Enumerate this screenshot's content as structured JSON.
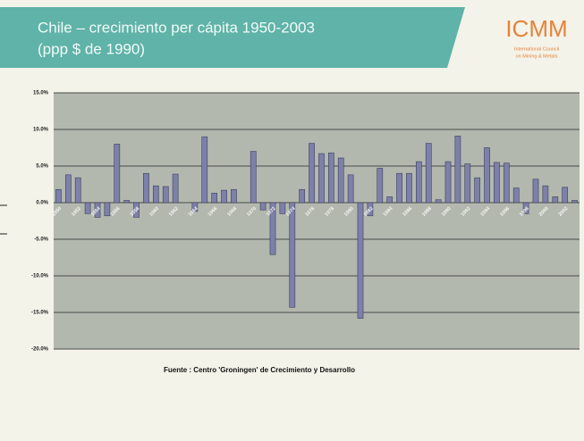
{
  "header": {
    "title": "Chile – crecimiento per cápita  1950-2003",
    "subtitle": "(ppp $ de 1990)",
    "logo": "ICMM",
    "logo_caption_1": "International Council",
    "logo_caption_2": "on Mining & Metals"
  },
  "chart_data": {
    "type": "bar",
    "color": "#7d80a8",
    "grid": true,
    "categories": [
      "1950",
      null,
      "1952",
      null,
      "1954",
      null,
      "1956",
      null,
      "1958",
      null,
      "1960",
      null,
      "1962",
      null,
      "1964",
      null,
      "1966",
      null,
      "1968",
      null,
      "1970",
      null,
      "1972",
      null,
      "1974",
      null,
      "1976",
      null,
      "1978",
      null,
      "1980",
      null,
      "1982",
      null,
      "1984",
      null,
      "1986",
      null,
      "1988",
      null,
      "1990",
      null,
      "1992",
      null,
      "1994",
      null,
      "1996",
      null,
      "1998",
      null,
      "2000",
      null,
      "2002",
      null
    ],
    "values": [
      1.8,
      3.8,
      3.4,
      -1.5,
      -2.0,
      -1.8,
      8.0,
      0.3,
      -2.0,
      4.0,
      2.3,
      2.2,
      3.9,
      0.0,
      -1.2,
      9.0,
      1.3,
      1.7,
      1.8,
      0.0,
      7.0,
      -1.0,
      -7.1,
      -1.5,
      -14.3,
      1.8,
      8.1,
      6.7,
      6.8,
      6.1,
      3.8,
      -15.8,
      -1.8,
      4.7,
      0.8,
      4.0,
      4.0,
      5.6,
      8.1,
      0.4,
      5.6,
      9.1,
      5.3,
      3.4,
      7.5,
      5.5,
      5.4,
      2.0,
      -1.5,
      3.2,
      2.3,
      0.8,
      2.1,
      0.3
    ],
    "ylim": [
      -20,
      15
    ],
    "yticks": [
      {
        "value": 15,
        "label": "15.0%"
      },
      {
        "value": 10,
        "label": "10.0%"
      },
      {
        "value": 5,
        "label": "5.0%"
      },
      {
        "value": 0,
        "label": "0.0%"
      },
      {
        "value": -5,
        "label": "-5.0%"
      },
      {
        "value": -10,
        "label": "-10.0%"
      },
      {
        "value": -15,
        "label": "-15.0%"
      },
      {
        "value": -20,
        "label": "-20.0%"
      }
    ],
    "source": "Fuente : Centro 'Groningen' de Crecimiento y Desarrollo"
  }
}
